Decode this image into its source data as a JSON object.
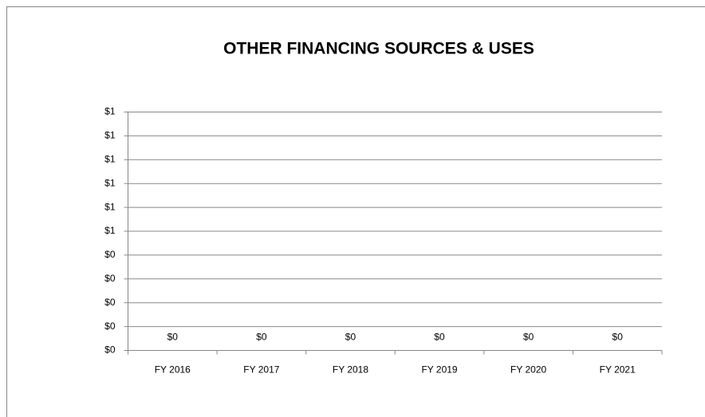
{
  "chart_data": {
    "type": "bar",
    "title": "OTHER FINANCING SOURCES & USES",
    "categories": [
      "FY 2016",
      "FY 2017",
      "FY 2018",
      "FY 2019",
      "FY 2020",
      "FY 2021"
    ],
    "values": [
      0,
      0,
      0,
      0,
      0,
      0
    ],
    "value_labels": [
      "$0",
      "$0",
      "$0",
      "$0",
      "$0",
      "$0"
    ],
    "color": "#4f81bd",
    "ylim": [
      0,
      1
    ],
    "yticks": [
      {
        "value": 0,
        "label": "$0"
      },
      {
        "value": 0.1,
        "label": "$0"
      },
      {
        "value": 0.2,
        "label": "$0"
      },
      {
        "value": 0.3,
        "label": "$0"
      },
      {
        "value": 0.4,
        "label": "$0"
      },
      {
        "value": 0.5,
        "label": "$1"
      },
      {
        "value": 0.6,
        "label": "$1"
      },
      {
        "value": 0.7,
        "label": "$1"
      },
      {
        "value": 0.8,
        "label": "$1"
      },
      {
        "value": 0.9,
        "label": "$1"
      },
      {
        "value": 1,
        "label": "$1"
      }
    ],
    "grid": true
  }
}
